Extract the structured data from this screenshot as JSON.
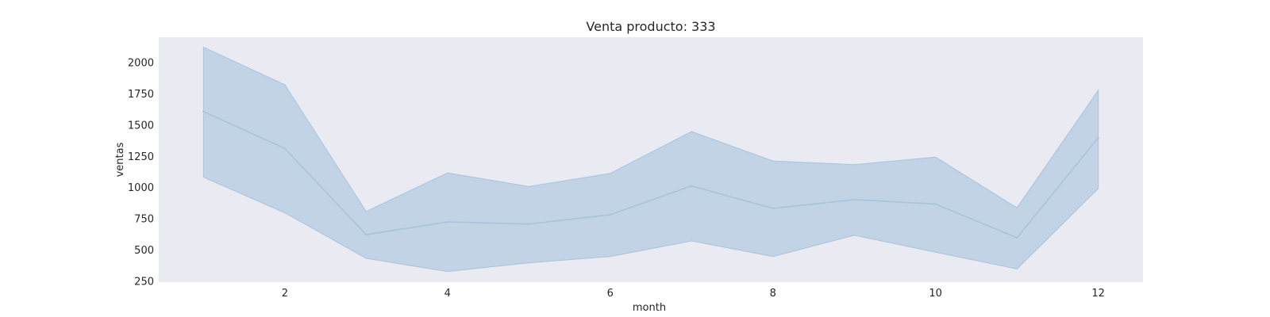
{
  "chart_data": {
    "type": "line",
    "title": "Venta producto: 333",
    "xlabel": "month",
    "ylabel": "ventas",
    "xlim": [
      0.45,
      12.55
    ],
    "ylim": [
      240,
      2200
    ],
    "xticks": [
      2,
      4,
      6,
      8,
      10,
      12
    ],
    "yticks": [
      250,
      500,
      750,
      1000,
      1250,
      1500,
      1750,
      2000
    ],
    "grid": false,
    "legend": "none",
    "colors": {
      "plot_bg": "#eaeaf2",
      "line": "#a8c4dc",
      "band": "#c2d3e5"
    },
    "x": [
      1,
      2,
      3,
      4,
      5,
      6,
      7,
      8,
      9,
      10,
      11,
      12
    ],
    "series": [
      {
        "values": [
          1605,
          1310,
          620,
          722,
          705,
          780,
          1010,
          830,
          900,
          865,
          595,
          1395
        ],
        "upper": [
          2120,
          1820,
          805,
          1115,
          1005,
          1110,
          1445,
          1210,
          1180,
          1240,
          835,
          1775
        ],
        "lower": [
          1080,
          795,
          430,
          325,
          395,
          445,
          570,
          445,
          615,
          480,
          345,
          990
        ]
      }
    ]
  }
}
